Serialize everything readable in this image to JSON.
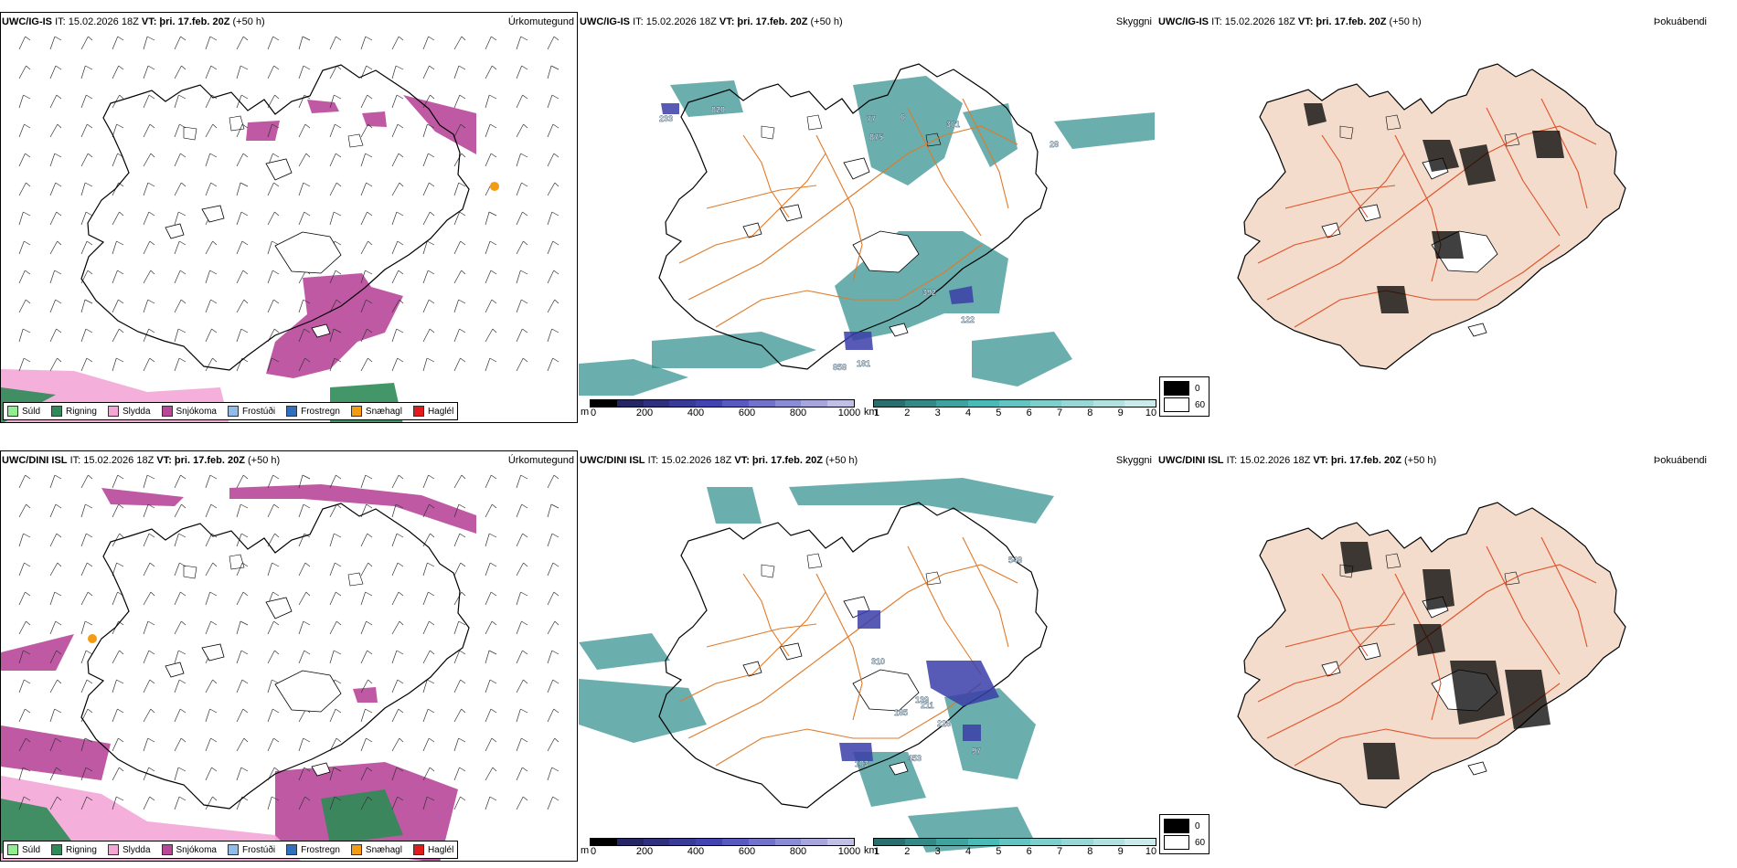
{
  "rows": [
    {
      "model": "UWC/IG-IS",
      "it": "IT: 15.02.2026 18Z",
      "vt": "VT: þri. 17.feb. 20Z",
      "lead": "(+50 h)",
      "titles": {
        "precip": "Úrkomutegund",
        "vis": "Skyggni",
        "fog": "Þokuábendi"
      },
      "labels": [
        "233",
        "820",
        "77",
        "6",
        "361",
        "875",
        "28",
        "392",
        "122",
        "858",
        "181"
      ]
    },
    {
      "model": "UWC/DINI ISL",
      "it": "IT: 15.02.2026 18Z",
      "vt": "VT: þri. 17.feb. 20Z",
      "lead": "(+50 h)",
      "titles": {
        "precip": "Úrkomutegund",
        "vis": "Skyggni",
        "fog": "Þokuábendi"
      },
      "labels": [
        "548",
        "310",
        "139",
        "211",
        "185",
        "228",
        "97",
        "453",
        "103"
      ]
    }
  ],
  "precip_legend": [
    {
      "label": "Súld",
      "color": "#90ee90"
    },
    {
      "label": "Rigning",
      "color": "#2e8b57"
    },
    {
      "label": "Slydda",
      "color": "#f4a6d7"
    },
    {
      "label": "Snjókoma",
      "color": "#b8479a"
    },
    {
      "label": "Frostúði",
      "color": "#8fbce8"
    },
    {
      "label": "Frostregn",
      "color": "#2f6fbf"
    },
    {
      "label": "Snæhagl",
      "color": "#f39c12"
    },
    {
      "label": "Haglél",
      "color": "#e31a1c"
    }
  ],
  "ceiling_bar": {
    "unit": "m",
    "ticks": [
      "0",
      "200",
      "400",
      "600",
      "800",
      "1000"
    ]
  },
  "vis_bar": {
    "unit": "km",
    "ticks": [
      "1",
      "2",
      "3",
      "4",
      "5",
      "6",
      "7",
      "8",
      "9",
      "10"
    ]
  },
  "fog_legend": [
    "0",
    "60"
  ],
  "colors": {
    "snow": "#b8479a",
    "sleet": "#f4a6d7",
    "rain": "#2e8b57",
    "teal": "#2b8c8a",
    "ceiling": "#3a3ea8",
    "roads": "#e07b2a",
    "land": "#f3dccb",
    "fog_roads": "#e0512a"
  }
}
